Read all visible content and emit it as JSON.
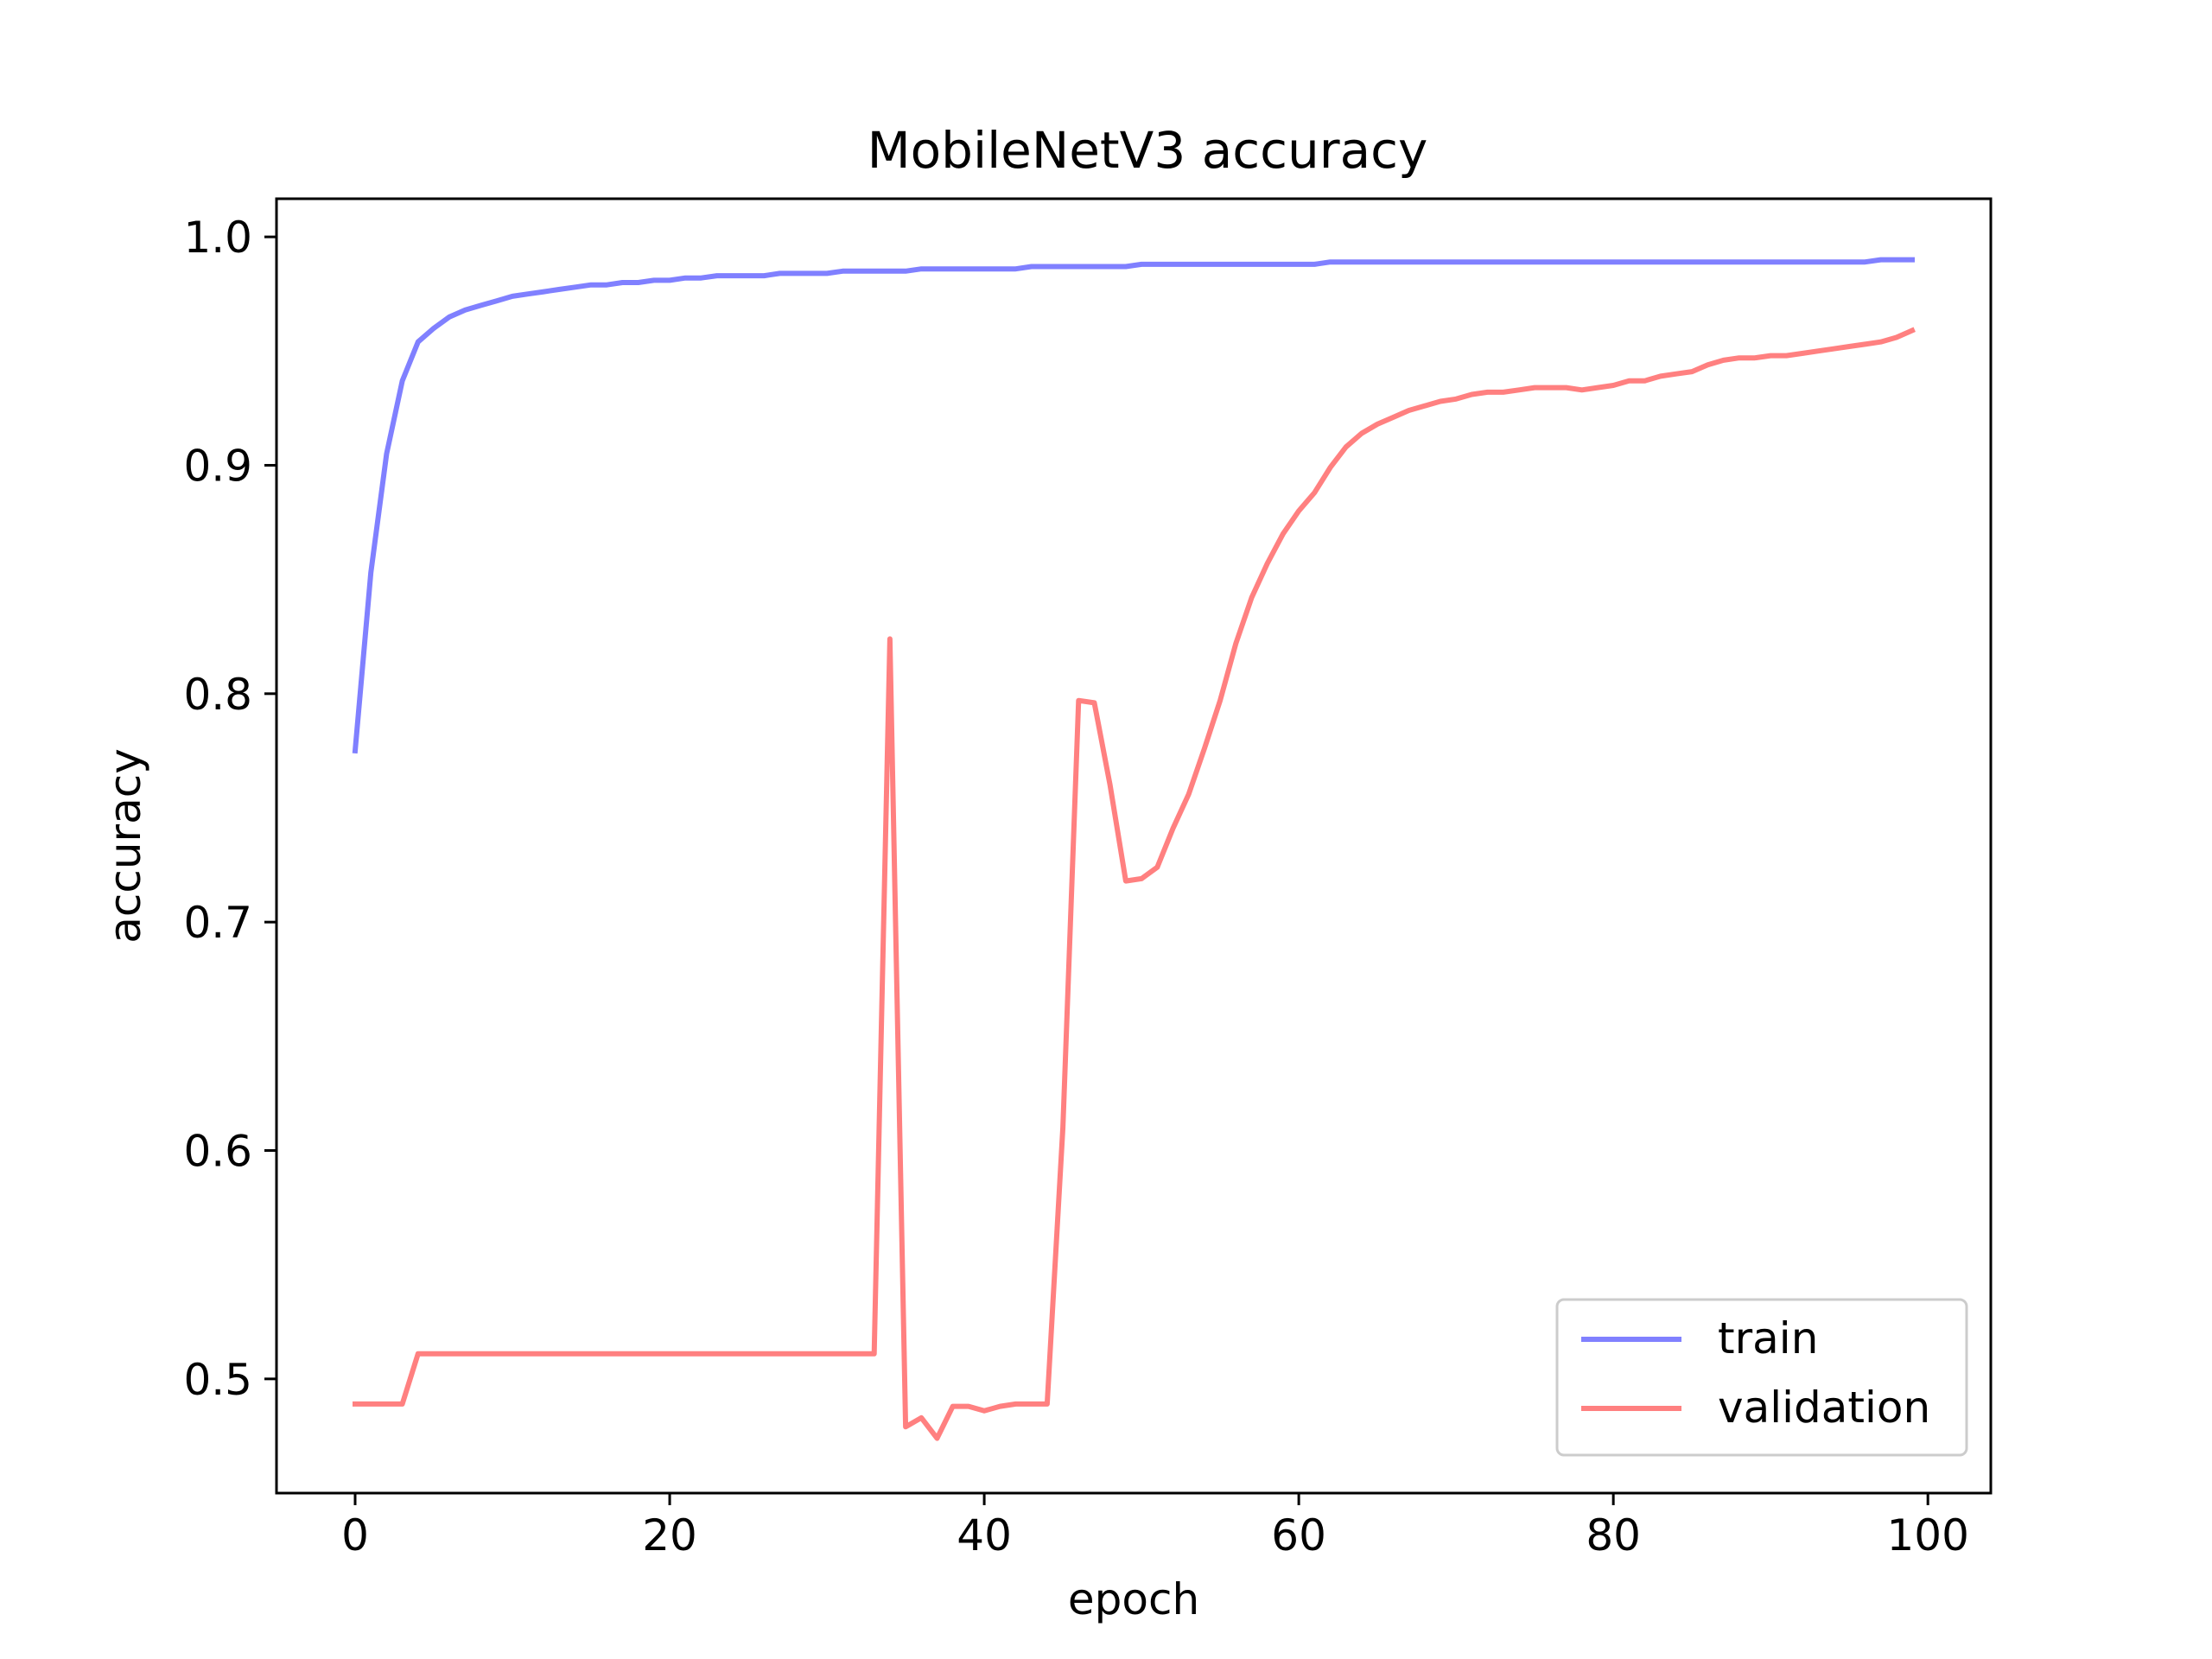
{
  "chart_data": {
    "type": "line",
    "title": "MobileNetV3 accuracy",
    "xlabel": "epoch",
    "ylabel": "accuracy",
    "xlim": [
      -5,
      104
    ],
    "ylim": [
      0.45,
      1.0167
    ],
    "xticks": [
      0,
      20,
      40,
      60,
      80,
      100
    ],
    "yticks": [
      0.5,
      0.6,
      0.7,
      0.8,
      0.9,
      1.0
    ],
    "xtick_labels": [
      "0",
      "20",
      "40",
      "60",
      "80",
      "100"
    ],
    "ytick_labels": [
      "0.5",
      "0.6",
      "0.7",
      "0.8",
      "0.9",
      "1.0"
    ],
    "grid": false,
    "legend_position": "lower right",
    "series": [
      {
        "name": "train",
        "color": "#8080ff",
        "x": [
          0,
          1,
          2,
          3,
          4,
          5,
          6,
          7,
          8,
          9,
          10,
          11,
          12,
          13,
          14,
          15,
          16,
          17,
          18,
          19,
          20,
          21,
          22,
          23,
          24,
          25,
          26,
          27,
          28,
          29,
          30,
          31,
          32,
          33,
          34,
          35,
          36,
          37,
          38,
          39,
          40,
          41,
          42,
          43,
          44,
          45,
          46,
          47,
          48,
          49,
          50,
          51,
          52,
          53,
          54,
          55,
          56,
          57,
          58,
          59,
          60,
          61,
          62,
          63,
          64,
          65,
          66,
          67,
          68,
          69,
          70,
          71,
          72,
          73,
          74,
          75,
          76,
          77,
          78,
          79,
          80,
          81,
          82,
          83,
          84,
          85,
          86,
          87,
          88,
          89,
          90,
          91,
          92,
          93,
          94,
          95,
          96,
          97,
          98,
          99
        ],
        "values": [
          0.775,
          0.853,
          0.905,
          0.937,
          0.954,
          0.96,
          0.965,
          0.968,
          0.97,
          0.972,
          0.974,
          0.975,
          0.976,
          0.977,
          0.978,
          0.979,
          0.979,
          0.98,
          0.98,
          0.981,
          0.981,
          0.982,
          0.982,
          0.983,
          0.983,
          0.983,
          0.983,
          0.984,
          0.984,
          0.984,
          0.984,
          0.985,
          0.985,
          0.985,
          0.985,
          0.985,
          0.986,
          0.986,
          0.986,
          0.986,
          0.986,
          0.986,
          0.986,
          0.987,
          0.987,
          0.987,
          0.987,
          0.987,
          0.987,
          0.987,
          0.988,
          0.988,
          0.988,
          0.988,
          0.988,
          0.988,
          0.988,
          0.988,
          0.988,
          0.988,
          0.988,
          0.988,
          0.989,
          0.989,
          0.989,
          0.989,
          0.989,
          0.989,
          0.989,
          0.989,
          0.989,
          0.989,
          0.989,
          0.989,
          0.989,
          0.989,
          0.989,
          0.989,
          0.989,
          0.989,
          0.989,
          0.989,
          0.989,
          0.989,
          0.989,
          0.989,
          0.989,
          0.989,
          0.989,
          0.989,
          0.989,
          0.989,
          0.989,
          0.989,
          0.989,
          0.989,
          0.989,
          0.99,
          0.99,
          0.99
        ]
      },
      {
        "name": "validation",
        "color": "#ff8080",
        "x": [
          0,
          1,
          2,
          3,
          4,
          5,
          6,
          7,
          8,
          9,
          10,
          11,
          12,
          13,
          14,
          15,
          16,
          17,
          18,
          19,
          20,
          21,
          22,
          23,
          24,
          25,
          26,
          27,
          28,
          29,
          30,
          31,
          32,
          33,
          34,
          35,
          36,
          37,
          38,
          39,
          40,
          41,
          42,
          43,
          44,
          45,
          46,
          47,
          48,
          49,
          50,
          51,
          52,
          53,
          54,
          55,
          56,
          57,
          58,
          59,
          60,
          61,
          62,
          63,
          64,
          65,
          66,
          67,
          68,
          69,
          70,
          71,
          72,
          73,
          74,
          75,
          76,
          77,
          78,
          79,
          80,
          81,
          82,
          83,
          84,
          85,
          86,
          87,
          88,
          89,
          90,
          91,
          92,
          93,
          94,
          95,
          96,
          97,
          98,
          99
        ],
        "values": [
          0.489,
          0.489,
          0.489,
          0.489,
          0.511,
          0.511,
          0.511,
          0.511,
          0.511,
          0.511,
          0.511,
          0.511,
          0.511,
          0.511,
          0.511,
          0.511,
          0.511,
          0.511,
          0.511,
          0.511,
          0.511,
          0.511,
          0.511,
          0.511,
          0.511,
          0.511,
          0.511,
          0.511,
          0.511,
          0.511,
          0.511,
          0.511,
          0.511,
          0.511,
          0.824,
          0.479,
          0.483,
          0.474,
          0.488,
          0.488,
          0.486,
          0.488,
          0.489,
          0.489,
          0.489,
          0.61,
          0.797,
          0.796,
          0.76,
          0.718,
          0.719,
          0.724,
          0.741,
          0.756,
          0.776,
          0.797,
          0.822,
          0.842,
          0.857,
          0.87,
          0.88,
          0.888,
          0.899,
          0.908,
          0.914,
          0.918,
          0.921,
          0.924,
          0.926,
          0.928,
          0.929,
          0.931,
          0.932,
          0.932,
          0.933,
          0.934,
          0.934,
          0.934,
          0.933,
          0.934,
          0.935,
          0.937,
          0.937,
          0.939,
          0.94,
          0.941,
          0.944,
          0.946,
          0.947,
          0.947,
          0.948,
          0.948,
          0.949,
          0.95,
          0.951,
          0.952,
          0.953,
          0.954,
          0.956,
          0.959
        ]
      }
    ]
  }
}
